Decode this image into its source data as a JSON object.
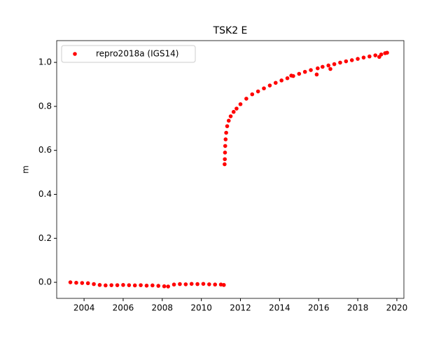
{
  "chart_data": {
    "type": "scatter",
    "title": "TSK2 E",
    "y_label": "m",
    "series": [
      {
        "name": "repro2018a (IGS14)",
        "color": "#ff0000",
        "x": [
          2003.3,
          2003.6,
          2003.9,
          2004.2,
          2004.5,
          2004.8,
          2005.1,
          2005.4,
          2005.7,
          2006.0,
          2006.3,
          2006.6,
          2006.9,
          2007.2,
          2007.5,
          2007.8,
          2008.1,
          2008.3,
          2008.6,
          2008.9,
          2009.2,
          2009.5,
          2009.8,
          2010.1,
          2010.4,
          2010.7,
          2011.0,
          2011.15,
          2011.19,
          2011.2,
          2011.21,
          2011.22,
          2011.24,
          2011.27,
          2011.32,
          2011.4,
          2011.5,
          2011.65,
          2011.8,
          2012.0,
          2012.3,
          2012.6,
          2012.9,
          2013.2,
          2013.5,
          2013.8,
          2014.1,
          2014.4,
          2014.6,
          2014.7,
          2015.0,
          2015.3,
          2015.6,
          2015.9,
          2015.95,
          2016.2,
          2016.5,
          2016.6,
          2016.8,
          2017.1,
          2017.4,
          2017.7,
          2018.0,
          2018.3,
          2018.6,
          2018.9,
          2019.1,
          2019.2,
          2019.4,
          2019.5
        ],
        "values": [
          0.0,
          -0.002,
          -0.003,
          -0.004,
          -0.008,
          -0.012,
          -0.014,
          -0.013,
          -0.013,
          -0.012,
          -0.013,
          -0.014,
          -0.013,
          -0.015,
          -0.014,
          -0.016,
          -0.018,
          -0.019,
          -0.01,
          -0.008,
          -0.009,
          -0.007,
          -0.008,
          -0.007,
          -0.009,
          -0.01,
          -0.01,
          -0.012,
          0.537,
          0.56,
          0.59,
          0.62,
          0.65,
          0.68,
          0.71,
          0.735,
          0.755,
          0.775,
          0.79,
          0.81,
          0.835,
          0.855,
          0.868,
          0.882,
          0.895,
          0.907,
          0.918,
          0.928,
          0.94,
          0.938,
          0.948,
          0.957,
          0.965,
          0.945,
          0.973,
          0.98,
          0.986,
          0.97,
          0.992,
          0.999,
          1.005,
          1.01,
          1.016,
          1.022,
          1.027,
          1.032,
          1.025,
          1.036,
          1.042,
          1.044
        ]
      }
    ],
    "xlim": [
      2002.6,
      2020.36
    ],
    "ylim": [
      -0.073,
      1.099
    ],
    "xticks": [
      2004,
      2006,
      2008,
      2010,
      2012,
      2014,
      2016,
      2018,
      2020
    ],
    "yticks": [
      {
        "value": 0,
        "label": "0.0"
      },
      0.2,
      0.4,
      0.6,
      0.8,
      {
        "value": 1,
        "label": "1.0"
      }
    ],
    "legend": "upper left"
  }
}
